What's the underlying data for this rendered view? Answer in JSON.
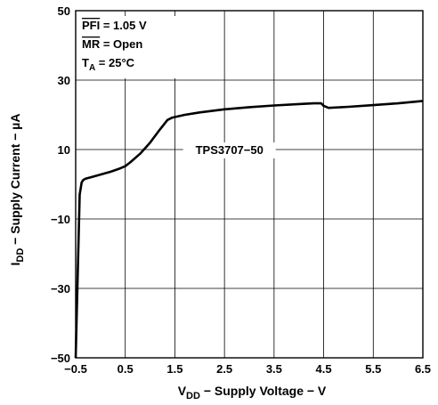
{
  "chart_data": {
    "type": "line",
    "xlabel_main": "V",
    "xlabel_sub": "DD",
    "xlabel_rest": " − Supply Voltage − V",
    "ylabel_main": "I",
    "ylabel_sub": "DD",
    "ylabel_rest": " − Supply Current − µA",
    "xlim": [
      -0.5,
      6.5
    ],
    "ylim": [
      -50,
      50
    ],
    "xticks": [
      -0.5,
      0.5,
      1.5,
      2.5,
      3.5,
      4.5,
      5.5,
      6.5
    ],
    "xtick_labels": [
      "−0.5",
      "0.5",
      "1.5",
      "2.5",
      "3.5",
      "4.5",
      "5.5",
      "6.5"
    ],
    "yticks": [
      50,
      30,
      10,
      -10,
      -30,
      -50
    ],
    "ytick_labels": [
      "50",
      "30",
      "10",
      "−10",
      "−30",
      "−50"
    ],
    "grid": true,
    "annotations": {
      "line1": "PFI = 1.05 V",
      "line1_over": "PFI",
      "line1_rest": " = 1.05 V",
      "line2_over": "MR",
      "line2_rest": " = Open",
      "line3_main": "T",
      "line3_sub": "A",
      "line3_rest": " = 25°C"
    },
    "series": [
      {
        "name": "TPS3707−50",
        "x": [
          -0.5,
          -0.42,
          -0.38,
          -0.35,
          -0.3,
          -0.2,
          0.0,
          0.2,
          0.4,
          0.5,
          0.6,
          0.8,
          1.0,
          1.2,
          1.35,
          1.45,
          1.7,
          2.0,
          2.5,
          3.0,
          3.5,
          4.0,
          4.3,
          4.45,
          4.5,
          4.6,
          5.0,
          5.5,
          6.0,
          6.5
        ],
        "y": [
          -50,
          -3,
          0.5,
          1.2,
          1.6,
          2.0,
          2.8,
          3.6,
          4.6,
          5.2,
          6.3,
          8.8,
          12.0,
          15.8,
          18.5,
          19.2,
          20.0,
          20.7,
          21.6,
          22.2,
          22.7,
          23.1,
          23.3,
          23.3,
          22.6,
          22.0,
          22.3,
          22.8,
          23.3,
          24.0
        ]
      }
    ]
  }
}
